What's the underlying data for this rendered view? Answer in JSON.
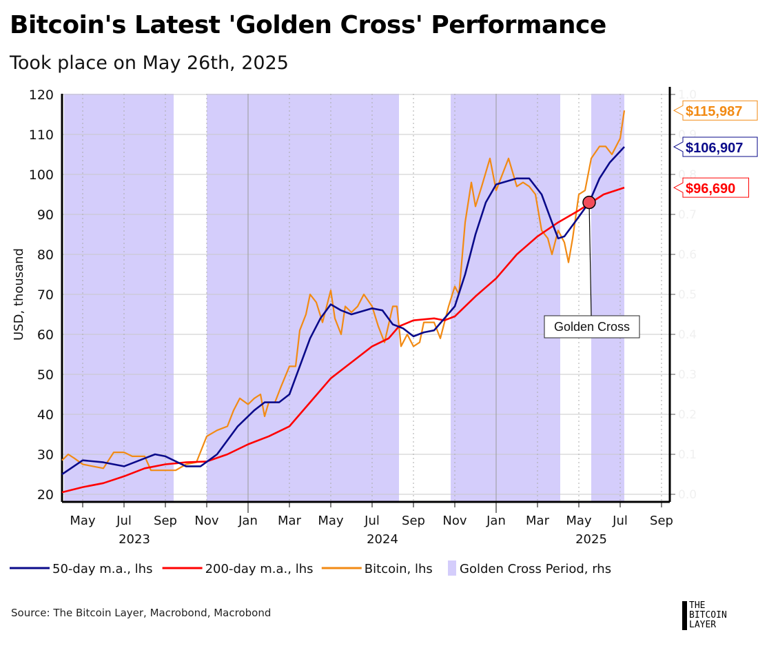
{
  "title": "Bitcoin's Latest 'Golden Cross' Performance",
  "subtitle": "Took place on May 26th, 2025",
  "source": "Source: The Bitcoin Layer, Macrobond, Macrobond",
  "logo_text": [
    "THE",
    "BITCOIN",
    "LAYER"
  ],
  "chart_data": {
    "type": "line",
    "x_unit": "months since 2023-04-01",
    "xlim": [
      0,
      30
    ],
    "ylim": [
      18,
      122
    ],
    "yticks": [
      20,
      30,
      40,
      50,
      60,
      70,
      80,
      90,
      100,
      110,
      120
    ],
    "ylabel": "USD, thousand",
    "rhs_ticks": [
      "0.0",
      "0.1",
      "0.2",
      "0.3",
      "0.4",
      "0.5",
      "0.6",
      "0.7",
      "0.8",
      "0.9",
      "1.0"
    ],
    "xtick_labels": [
      {
        "m": 1,
        "label": "May"
      },
      {
        "m": 3,
        "label": "Jul"
      },
      {
        "m": 5,
        "label": "Sep"
      },
      {
        "m": 7,
        "label": "Nov"
      },
      {
        "m": 9,
        "label": "Jan"
      },
      {
        "m": 11,
        "label": "Mar"
      },
      {
        "m": 13,
        "label": "May"
      },
      {
        "m": 15,
        "label": "Jul"
      },
      {
        "m": 17,
        "label": "Sep"
      },
      {
        "m": 19,
        "label": "Nov"
      },
      {
        "m": 21,
        "label": "Jan"
      },
      {
        "m": 23,
        "label": "Mar"
      },
      {
        "m": 25,
        "label": "May"
      },
      {
        "m": 27,
        "label": "Jul"
      },
      {
        "m": 29,
        "label": "Sep"
      }
    ],
    "year_labels": [
      {
        "m": 3.5,
        "label": "2023"
      },
      {
        "m": 15.5,
        "label": "2024"
      },
      {
        "m": 25.6,
        "label": "2025"
      }
    ],
    "golden_cross_periods": [
      [
        0.1,
        5.4
      ],
      [
        7.0,
        16.3
      ],
      [
        18.8,
        24.1
      ],
      [
        25.6,
        27.2
      ]
    ],
    "series": [
      {
        "name": "50-day m.a., lhs",
        "color": "#0a0a8a",
        "end_label": "$106,907",
        "points": [
          [
            0,
            25
          ],
          [
            1,
            28.5
          ],
          [
            2,
            28
          ],
          [
            3,
            27
          ],
          [
            4,
            29
          ],
          [
            4.5,
            30
          ],
          [
            5,
            29.5
          ],
          [
            6,
            27
          ],
          [
            6.7,
            27
          ],
          [
            7.5,
            30
          ],
          [
            8.5,
            37
          ],
          [
            9.3,
            41
          ],
          [
            9.8,
            43
          ],
          [
            10.5,
            43
          ],
          [
            11,
            45
          ],
          [
            11.5,
            52
          ],
          [
            12,
            59
          ],
          [
            12.5,
            64
          ],
          [
            13,
            67.5
          ],
          [
            13.5,
            66
          ],
          [
            14,
            65
          ],
          [
            15,
            66.5
          ],
          [
            15.5,
            66
          ],
          [
            16,
            62.5
          ],
          [
            16.5,
            61.5
          ],
          [
            17,
            59.5
          ],
          [
            17.5,
            60.5
          ],
          [
            18,
            61
          ],
          [
            19,
            67
          ],
          [
            19.5,
            75
          ],
          [
            20,
            85
          ],
          [
            20.5,
            93
          ],
          [
            21,
            97.5
          ],
          [
            22,
            99
          ],
          [
            22.6,
            99
          ],
          [
            23.2,
            95
          ],
          [
            23.7,
            88
          ],
          [
            24,
            84
          ],
          [
            24.3,
            84.5
          ],
          [
            24.8,
            88
          ],
          [
            25.5,
            93
          ],
          [
            26,
            99
          ],
          [
            26.5,
            103
          ],
          [
            27.2,
            106.9
          ]
        ]
      },
      {
        "name": "200-day m.a., lhs",
        "color": "#ff0000",
        "end_label": "$96,690",
        "points": [
          [
            0,
            20.5
          ],
          [
            1,
            21.8
          ],
          [
            2,
            22.8
          ],
          [
            3,
            24.5
          ],
          [
            4,
            26.5
          ],
          [
            5,
            27.5
          ],
          [
            6,
            28
          ],
          [
            7,
            28.2
          ],
          [
            8,
            30
          ],
          [
            9,
            32.5
          ],
          [
            10,
            34.5
          ],
          [
            11,
            37
          ],
          [
            12,
            43
          ],
          [
            13,
            49
          ],
          [
            14,
            53
          ],
          [
            15,
            57
          ],
          [
            15.8,
            59
          ],
          [
            16.3,
            62
          ],
          [
            17,
            63.5
          ],
          [
            18,
            64
          ],
          [
            18.5,
            63.5
          ],
          [
            19,
            64.5
          ],
          [
            20,
            69.5
          ],
          [
            21,
            74
          ],
          [
            22,
            80
          ],
          [
            23,
            84.5
          ],
          [
            24,
            88
          ],
          [
            25,
            91
          ],
          [
            25.6,
            93
          ],
          [
            26.2,
            95
          ],
          [
            27.2,
            96.7
          ]
        ]
      },
      {
        "name": "Bitcoin, lhs",
        "color": "#f28a13",
        "end_label": "$115,987",
        "points": [
          [
            0,
            28.5
          ],
          [
            0.3,
            30
          ],
          [
            0.6,
            29
          ],
          [
            1,
            27.5
          ],
          [
            1.5,
            27
          ],
          [
            2,
            26.5
          ],
          [
            2.5,
            30.5
          ],
          [
            3,
            30.5
          ],
          [
            3.4,
            29.5
          ],
          [
            4,
            29.5
          ],
          [
            4.3,
            26
          ],
          [
            5,
            26
          ],
          [
            5.5,
            26
          ],
          [
            6,
            27.5
          ],
          [
            6.5,
            28
          ],
          [
            7,
            34.5
          ],
          [
            7.5,
            36
          ],
          [
            8,
            37
          ],
          [
            8.3,
            41
          ],
          [
            8.6,
            44
          ],
          [
            9,
            42.5
          ],
          [
            9.3,
            44
          ],
          [
            9.6,
            45
          ],
          [
            9.8,
            39.5
          ],
          [
            10,
            43
          ],
          [
            10.3,
            43
          ],
          [
            10.6,
            47
          ],
          [
            11,
            52
          ],
          [
            11.3,
            52
          ],
          [
            11.5,
            61
          ],
          [
            11.8,
            65
          ],
          [
            12,
            70
          ],
          [
            12.3,
            68
          ],
          [
            12.6,
            63
          ],
          [
            13,
            71
          ],
          [
            13.2,
            64
          ],
          [
            13.5,
            60
          ],
          [
            13.7,
            67
          ],
          [
            14,
            65.5
          ],
          [
            14.3,
            67
          ],
          [
            14.6,
            70
          ],
          [
            15,
            67
          ],
          [
            15.3,
            62
          ],
          [
            15.6,
            58
          ],
          [
            16,
            67
          ],
          [
            16.2,
            67
          ],
          [
            16.4,
            57
          ],
          [
            16.7,
            60
          ],
          [
            17,
            57
          ],
          [
            17.3,
            58
          ],
          [
            17.5,
            63
          ],
          [
            18,
            63
          ],
          [
            18.3,
            59
          ],
          [
            18.7,
            67
          ],
          [
            19,
            72
          ],
          [
            19.2,
            70
          ],
          [
            19.5,
            88
          ],
          [
            19.8,
            98
          ],
          [
            20,
            92
          ],
          [
            20.3,
            97
          ],
          [
            20.7,
            104
          ],
          [
            21,
            96
          ],
          [
            21.3,
            100
          ],
          [
            21.6,
            104
          ],
          [
            22,
            97
          ],
          [
            22.3,
            98
          ],
          [
            22.6,
            97
          ],
          [
            22.9,
            95
          ],
          [
            23.2,
            86
          ],
          [
            23.5,
            84
          ],
          [
            23.7,
            80
          ],
          [
            24,
            86
          ],
          [
            24.3,
            83
          ],
          [
            24.5,
            78
          ],
          [
            24.7,
            84
          ],
          [
            25,
            95
          ],
          [
            25.3,
            96
          ],
          [
            25.6,
            104
          ],
          [
            26,
            107
          ],
          [
            26.3,
            107
          ],
          [
            26.6,
            105
          ],
          [
            27,
            109
          ],
          [
            27.2,
            116
          ]
        ]
      }
    ],
    "legend": [
      {
        "label": "50-day m.a., lhs",
        "color": "#0a0a8a",
        "kind": "line"
      },
      {
        "label": "200-day m.a., lhs",
        "color": "#ff0000",
        "kind": "line"
      },
      {
        "label": "Bitcoin, lhs",
        "color": "#f28a13",
        "kind": "line"
      },
      {
        "label": "Golden Cross Period, rhs",
        "color": "#d4cdfb",
        "kind": "box"
      }
    ],
    "annotation": {
      "label": "Golden Cross",
      "m": 25.5,
      "value": 93
    }
  }
}
